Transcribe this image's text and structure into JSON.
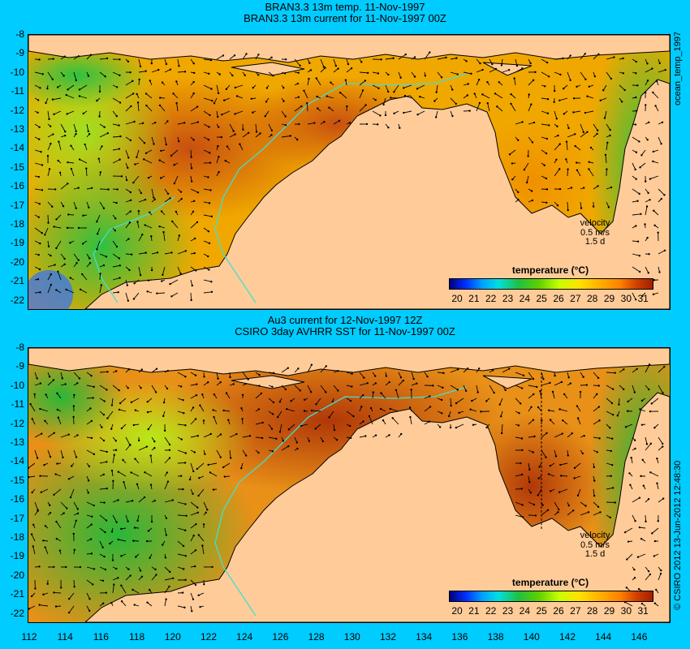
{
  "top_panel": {
    "title_line1": "BRAN3.3 13m temp. 11-Nov-1997",
    "title_line2": "BRAN3.3 13m current for 11-Nov-1997 00Z",
    "side_label": "ocean_temp_1997"
  },
  "bottom_panel": {
    "title_line1": "Au3 current for 12-Nov-1997 12Z",
    "title_line2": "CSIRO 3day AVHRR SST for 11-Nov-1997 00Z",
    "side_label": "© CSIRO 2012  13-Jun-2012 12:48:30"
  },
  "legend": {
    "title": "temperature (°C)",
    "ticks": [
      "20",
      "21",
      "22",
      "23",
      "24",
      "25",
      "26",
      "27",
      "28",
      "29",
      "30",
      "31"
    ]
  },
  "velocity_key": {
    "label": "velocity",
    "speed": "0.5 m/s",
    "duration": "1.5 d"
  },
  "axes": {
    "y_ticks": [
      "-8",
      "-9",
      "-10",
      "-11",
      "-12",
      "-13",
      "-14",
      "-15",
      "-16",
      "-17",
      "-18",
      "-19",
      "-20",
      "-21",
      "-22"
    ],
    "x_ticks": [
      "112",
      "114",
      "116",
      "118",
      "120",
      "122",
      "124",
      "126",
      "128",
      "130",
      "132",
      "134",
      "136",
      "138",
      "140",
      "142",
      "144",
      "146"
    ]
  },
  "colors": {
    "background": "#00ccff",
    "land": "#ffcc99",
    "coastline": "#000000",
    "isobath": "#40e0d0"
  }
}
